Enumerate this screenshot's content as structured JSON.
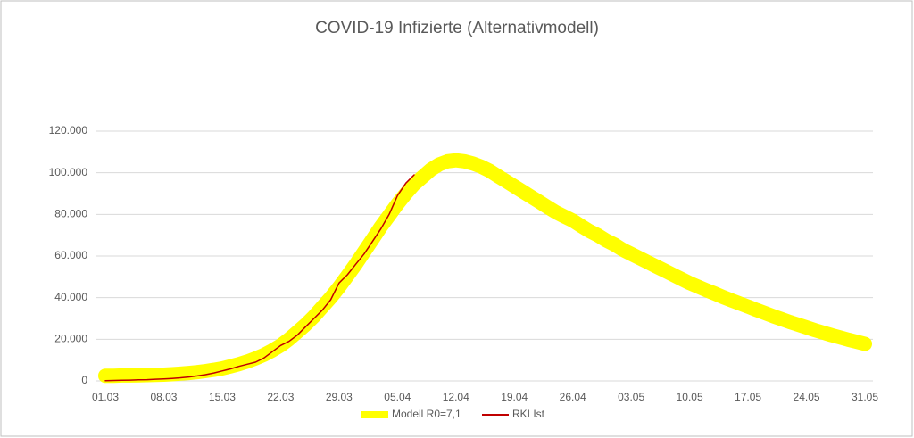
{
  "chart_data": {
    "type": "line",
    "title": "COVID-19 Infizierte (Alternativmodell)",
    "categories": [
      "01.03",
      null,
      null,
      null,
      null,
      null,
      null,
      "08.03",
      null,
      null,
      null,
      null,
      null,
      null,
      "15.03",
      null,
      null,
      null,
      null,
      null,
      null,
      "22.03",
      null,
      null,
      null,
      null,
      null,
      null,
      "29.03",
      null,
      null,
      null,
      null,
      null,
      null,
      "05.04",
      null,
      null,
      null,
      null,
      null,
      null,
      "12.04",
      null,
      null,
      null,
      null,
      null,
      null,
      "19.04",
      null,
      null,
      null,
      null,
      null,
      null,
      "26.04",
      null,
      null,
      null,
      null,
      null,
      null,
      "03.05",
      null,
      null,
      null,
      null,
      null,
      null,
      "10.05",
      null,
      null,
      null,
      null,
      null,
      null,
      "17.05",
      null,
      null,
      null,
      null,
      null,
      null,
      "24.05",
      null,
      null,
      null,
      null,
      null,
      null,
      "31.05"
    ],
    "series": [
      {
        "name": "Modell R0=7,1",
        "color": "#ffff00",
        "values": [
          2500,
          2500,
          2600,
          2600,
          2700,
          2800,
          2900,
          3000,
          3200,
          3500,
          3800,
          4200,
          4700,
          5300,
          6000,
          7000,
          8000,
          9300,
          10800,
          12500,
          14600,
          17000,
          20000,
          23500,
          27000,
          31000,
          35500,
          40000,
          45000,
          50500,
          56000,
          62000,
          68000,
          74000,
          79500,
          85000,
          90000,
          94500,
          98000,
          101500,
          104000,
          105500,
          106000,
          105500,
          104500,
          103000,
          101000,
          98500,
          96000,
          93500,
          91000,
          88500,
          86000,
          83500,
          81000,
          79000,
          77000,
          74500,
          72000,
          70000,
          67500,
          65500,
          63000,
          61000,
          59000,
          57000,
          55000,
          53000,
          51000,
          49000,
          47000,
          45300,
          43600,
          42000,
          40300,
          38700,
          37200,
          35700,
          34100,
          32600,
          31100,
          29700,
          28300,
          27000,
          25700,
          24400,
          23200,
          22000,
          20900,
          19800,
          18800,
          17800
        ]
      },
      {
        "name": "RKI Ist",
        "color": "#c00000",
        "values": [
          100,
          200,
          300,
          400,
          500,
          600,
          800,
          1000,
          1200,
          1500,
          1900,
          2400,
          3000,
          3800,
          4800,
          5800,
          7000,
          8000,
          9000,
          11000,
          14000,
          17000,
          19000,
          22000,
          26000,
          30000,
          34000,
          39000,
          47000,
          51000,
          56000,
          61000,
          67000,
          73000,
          80000,
          89000,
          95000,
          99000,
          null,
          null,
          null,
          null,
          null,
          null,
          null,
          null,
          null,
          null,
          null,
          null,
          null,
          null,
          null,
          null,
          null,
          null,
          null,
          null,
          null,
          null,
          null,
          null,
          null,
          null,
          null,
          null,
          null,
          null,
          null,
          null,
          null,
          null,
          null,
          null,
          null,
          null,
          null,
          null,
          null,
          null,
          null,
          null,
          null,
          null,
          null,
          null,
          null,
          null,
          null,
          null,
          null,
          null
        ]
      }
    ],
    "ylim": [
      0,
      120000
    ],
    "yticks": [
      0,
      {
        "value": 20000,
        "label": "20.000"
      },
      {
        "value": 40000,
        "label": "40.000"
      },
      {
        "value": 60000,
        "label": "60.000"
      },
      {
        "value": 80000,
        "label": "80.000"
      },
      {
        "value": 100000,
        "label": "100.000"
      },
      {
        "value": 120000,
        "label": "120.000"
      }
    ],
    "grid": true
  }
}
